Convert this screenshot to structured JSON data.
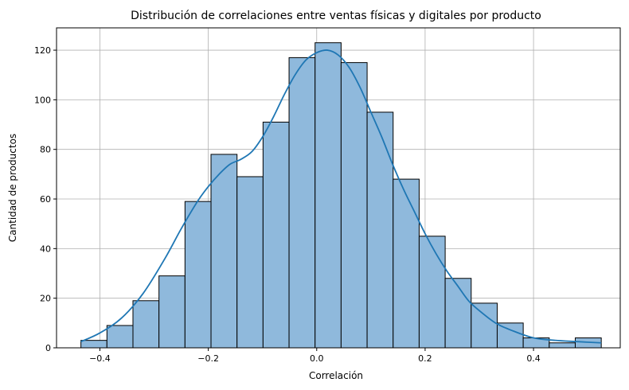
{
  "chart_data": {
    "type": "bar",
    "subtype": "histogram-with-kde",
    "title": "Distribución de correlaciones entre ventas físicas y digitales por producto",
    "xlabel": "Correlación",
    "ylabel": "Cantidad de productos",
    "xlim": [
      -0.48,
      0.56
    ],
    "ylim": [
      0,
      129
    ],
    "xticks": [
      -0.4,
      -0.2,
      0.0,
      0.2,
      0.4
    ],
    "xtick_labels": [
      "−0.4",
      "−0.2",
      "0.0",
      "0.2",
      "0.4"
    ],
    "yticks": [
      0,
      20,
      40,
      60,
      80,
      100,
      120
    ],
    "ytick_labels": [
      "0",
      "20",
      "40",
      "60",
      "80",
      "100",
      "120"
    ],
    "grid": true,
    "bin_edges": [
      -0.435,
      -0.387,
      -0.339,
      -0.291,
      -0.243,
      -0.195,
      -0.147,
      -0.099,
      -0.051,
      -0.003,
      0.045,
      0.093,
      0.141,
      0.189,
      0.237,
      0.285,
      0.333,
      0.381,
      0.429,
      0.477,
      0.525
    ],
    "counts": [
      3,
      9,
      19,
      29,
      59,
      78,
      69,
      91,
      117,
      123,
      115,
      95,
      68,
      45,
      28,
      18,
      10,
      4,
      2,
      4
    ],
    "kde": {
      "x": [
        -0.435,
        -0.4,
        -0.36,
        -0.32,
        -0.28,
        -0.25,
        -0.22,
        -0.2,
        -0.18,
        -0.16,
        -0.14,
        -0.12,
        -0.1,
        -0.08,
        -0.06,
        -0.04,
        -0.02,
        0.0,
        0.02,
        0.04,
        0.06,
        0.08,
        0.1,
        0.12,
        0.14,
        0.16,
        0.18,
        0.2,
        0.22,
        0.24,
        0.26,
        0.28,
        0.3,
        0.33,
        0.36,
        0.4,
        0.44,
        0.48,
        0.525
      ],
      "y": [
        2.5,
        6,
        12,
        22,
        36,
        48,
        59,
        65,
        70,
        74,
        76,
        79,
        85,
        93,
        102,
        110,
        116,
        119,
        120,
        118,
        113,
        105,
        95,
        85,
        74,
        64,
        55,
        46,
        38,
        31,
        25,
        19,
        15,
        10,
        7,
        4,
        3,
        2.5,
        2
      ]
    },
    "colors": {
      "bar_fill": "#8fb9dc",
      "bar_edge": "#000000",
      "kde_line": "#1f77b4",
      "grid": "#b0b0b0"
    }
  }
}
